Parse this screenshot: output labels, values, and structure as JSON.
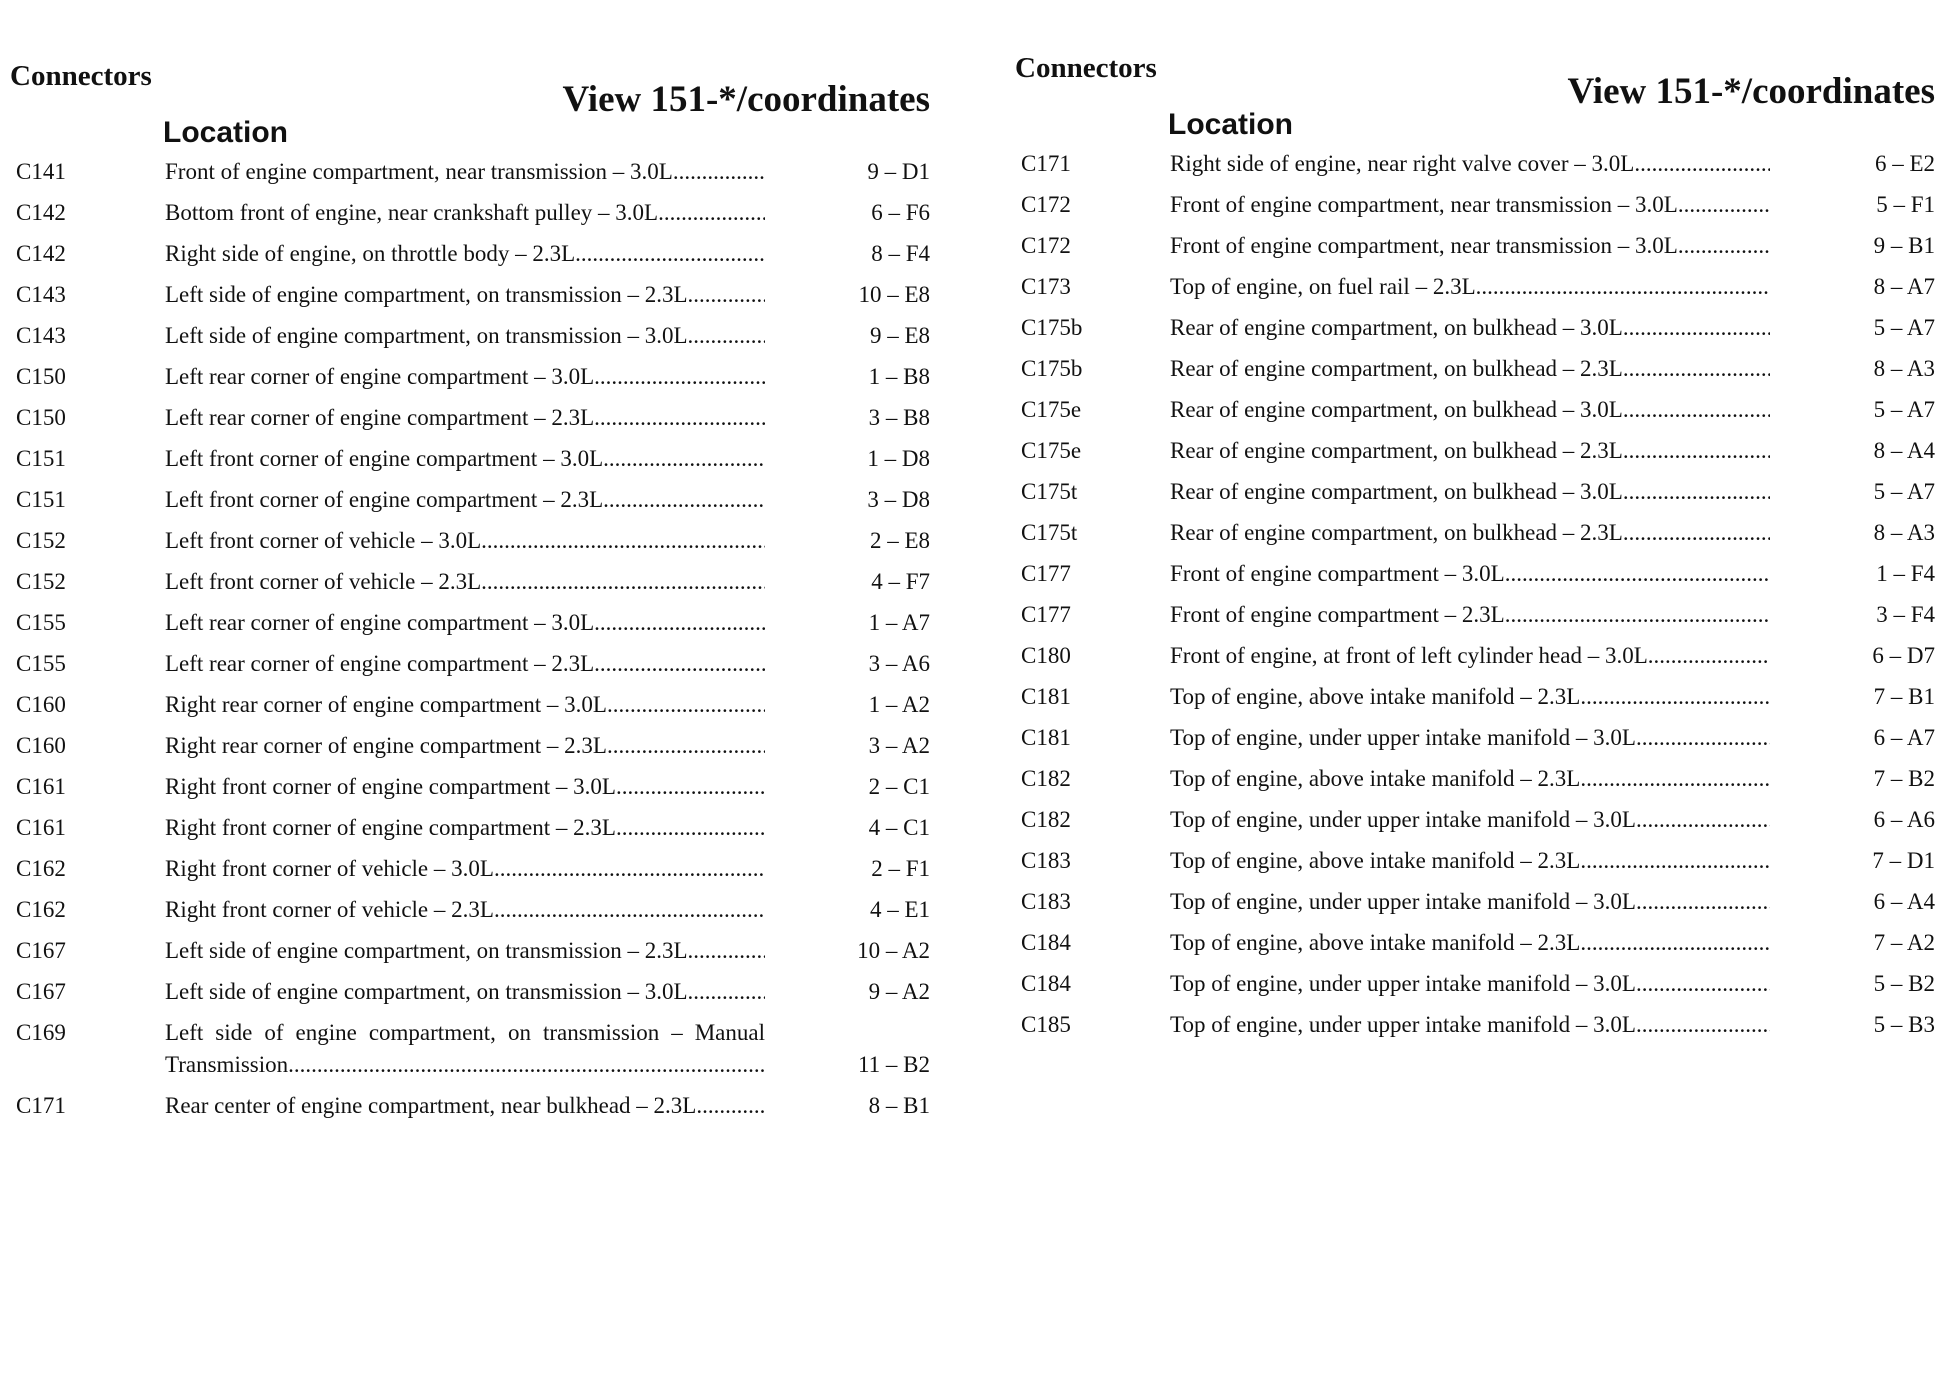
{
  "columns": [
    {
      "header": {
        "connectors": "Connectors",
        "view": "View 151-*/coordinates",
        "location": "Location"
      },
      "rows": [
        [
          "C141",
          "Front of engine compartment, near transmission – 3.0L",
          "9 – D1"
        ],
        [
          "C142",
          "Bottom front of engine, near crankshaft pulley – 3.0L",
          "6 – F6"
        ],
        [
          "C142",
          "Right side of engine, on throttle body – 2.3L",
          "8 – F4"
        ],
        [
          "C143",
          "Left side of engine compartment, on transmission – 2.3L",
          "10 – E8"
        ],
        [
          "C143",
          "Left side of engine compartment, on transmission – 3.0L",
          "9 – E8"
        ],
        [
          "C150",
          "Left rear corner of engine compartment – 3.0L",
          "1 – B8"
        ],
        [
          "C150",
          "Left rear corner of engine compartment – 2.3L",
          "3 – B8"
        ],
        [
          "C151",
          "Left front corner of engine compartment – 3.0L",
          "1 – D8"
        ],
        [
          "C151",
          "Left front corner of engine compartment – 2.3L",
          "3 – D8"
        ],
        [
          "C152",
          "Left front corner of vehicle – 3.0L",
          "2 – E8"
        ],
        [
          "C152",
          "Left front corner of vehicle – 2.3L",
          "4 – F7"
        ],
        [
          "C155",
          "Left rear corner of engine compartment – 3.0L",
          "1 – A7"
        ],
        [
          "C155",
          "Left rear corner of engine compartment – 2.3L",
          "3 – A6"
        ],
        [
          "C160",
          "Right rear corner of engine compartment – 3.0L",
          "1 – A2"
        ],
        [
          "C160",
          "Right rear corner of engine compartment – 2.3L",
          "3 – A2"
        ],
        [
          "C161",
          "Right front corner of engine compartment – 3.0L",
          "2 – C1"
        ],
        [
          "C161",
          "Right front corner of engine compartment – 2.3L",
          "4 – C1"
        ],
        [
          "C162",
          "Right front corner of vehicle – 3.0L",
          "2 – F1"
        ],
        [
          "C162",
          "Right front corner of vehicle – 2.3L",
          "4 – E1"
        ],
        [
          "C167",
          "Left side of engine compartment, on transmission – 2.3L",
          "10 – A2"
        ],
        [
          "C167",
          "Left side of engine compartment, on transmission – 3.0L",
          "9 – A2"
        ],
        [
          "C169",
          "Left side of engine compartment, on transmission – Manual Transmission",
          "11 – B2"
        ],
        [
          "C171",
          "Rear center of engine compartment, near bulkhead – 2.3L",
          "8 – B1"
        ]
      ]
    },
    {
      "header": {
        "connectors": "Connectors",
        "view": "View 151-*/coordinates",
        "location": "Location"
      },
      "rows": [
        [
          "C171",
          "Right side of engine, near right valve cover – 3.0L",
          "6 – E2"
        ],
        [
          "C172",
          "Front of engine compartment, near transmission – 3.0L",
          "5 – F1"
        ],
        [
          "C172",
          "Front of engine compartment, near transmission – 3.0L",
          "9 – B1"
        ],
        [
          "C173",
          "Top of engine, on fuel rail – 2.3L",
          "8 – A7"
        ],
        [
          "C175b",
          "Rear of engine compartment, on bulkhead – 3.0L",
          "5 – A7"
        ],
        [
          "C175b",
          "Rear of engine compartment, on bulkhead – 2.3L",
          "8 – A3"
        ],
        [
          "C175e",
          "Rear of engine compartment, on bulkhead – 3.0L",
          "5 – A7"
        ],
        [
          "C175e",
          "Rear of engine compartment, on bulkhead – 2.3L",
          "8 – A4"
        ],
        [
          "C175t",
          "Rear of engine compartment, on bulkhead – 3.0L",
          "5 – A7"
        ],
        [
          "C175t",
          "Rear of engine compartment, on bulkhead – 2.3L",
          "8 – A3"
        ],
        [
          "C177",
          "Front of engine compartment – 3.0L",
          "1 – F4"
        ],
        [
          "C177",
          "Front of engine compartment – 2.3L",
          "3 – F4"
        ],
        [
          "C180",
          "Front of engine, at front of left cylinder head – 3.0L",
          "6 – D7"
        ],
        [
          "C181",
          "Top of engine, above intake manifold – 2.3L",
          "7 – B1"
        ],
        [
          "C181",
          "Top of engine, under upper intake manifold – 3.0L",
          "6 – A7"
        ],
        [
          "C182",
          "Top of engine, above intake manifold – 2.3L",
          "7 – B2"
        ],
        [
          "C182",
          "Top of engine, under upper intake manifold – 3.0L",
          "6 – A6"
        ],
        [
          "C183",
          "Top of engine, above intake manifold – 2.3L",
          "7 – D1"
        ],
        [
          "C183",
          "Top of engine, under upper intake manifold – 3.0L",
          "6 – A4"
        ],
        [
          "C184",
          "Top of engine, above intake manifold – 2.3L",
          "7 – A2"
        ],
        [
          "C184",
          "Top of engine, under upper intake manifold – 3.0L",
          "5 – B2"
        ],
        [
          "C185",
          "Top of engine, under upper intake manifold – 3.0L",
          "5 – B3"
        ]
      ]
    }
  ]
}
